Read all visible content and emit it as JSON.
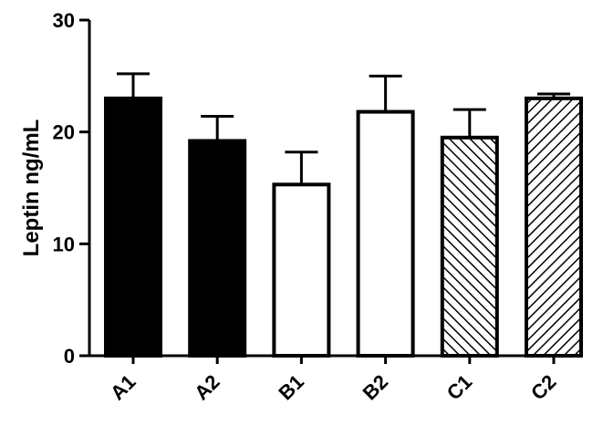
{
  "chart_data": {
    "type": "bar",
    "title": "",
    "xlabel": "",
    "ylabel": "Leptin ng/mL",
    "ylim": [
      0,
      30
    ],
    "yticks": [
      0,
      10,
      20,
      30
    ],
    "ytick_labels": [
      "0",
      "10",
      "20",
      "30"
    ],
    "categories": [
      "A1",
      "A2",
      "B1",
      "B2",
      "C1",
      "C2"
    ],
    "values": [
      23.0,
      19.2,
      15.3,
      21.8,
      19.5,
      23.0
    ],
    "errors": [
      2.2,
      2.2,
      2.9,
      3.2,
      2.5,
      0.4
    ],
    "fills": [
      "solid",
      "solid",
      "open",
      "open",
      "hatch",
      "hatch"
    ],
    "grid": false,
    "legend": "none",
    "colors": {
      "bar_solid": "#000000",
      "bar_open": "#ffffff",
      "stroke": "#000000"
    }
  }
}
